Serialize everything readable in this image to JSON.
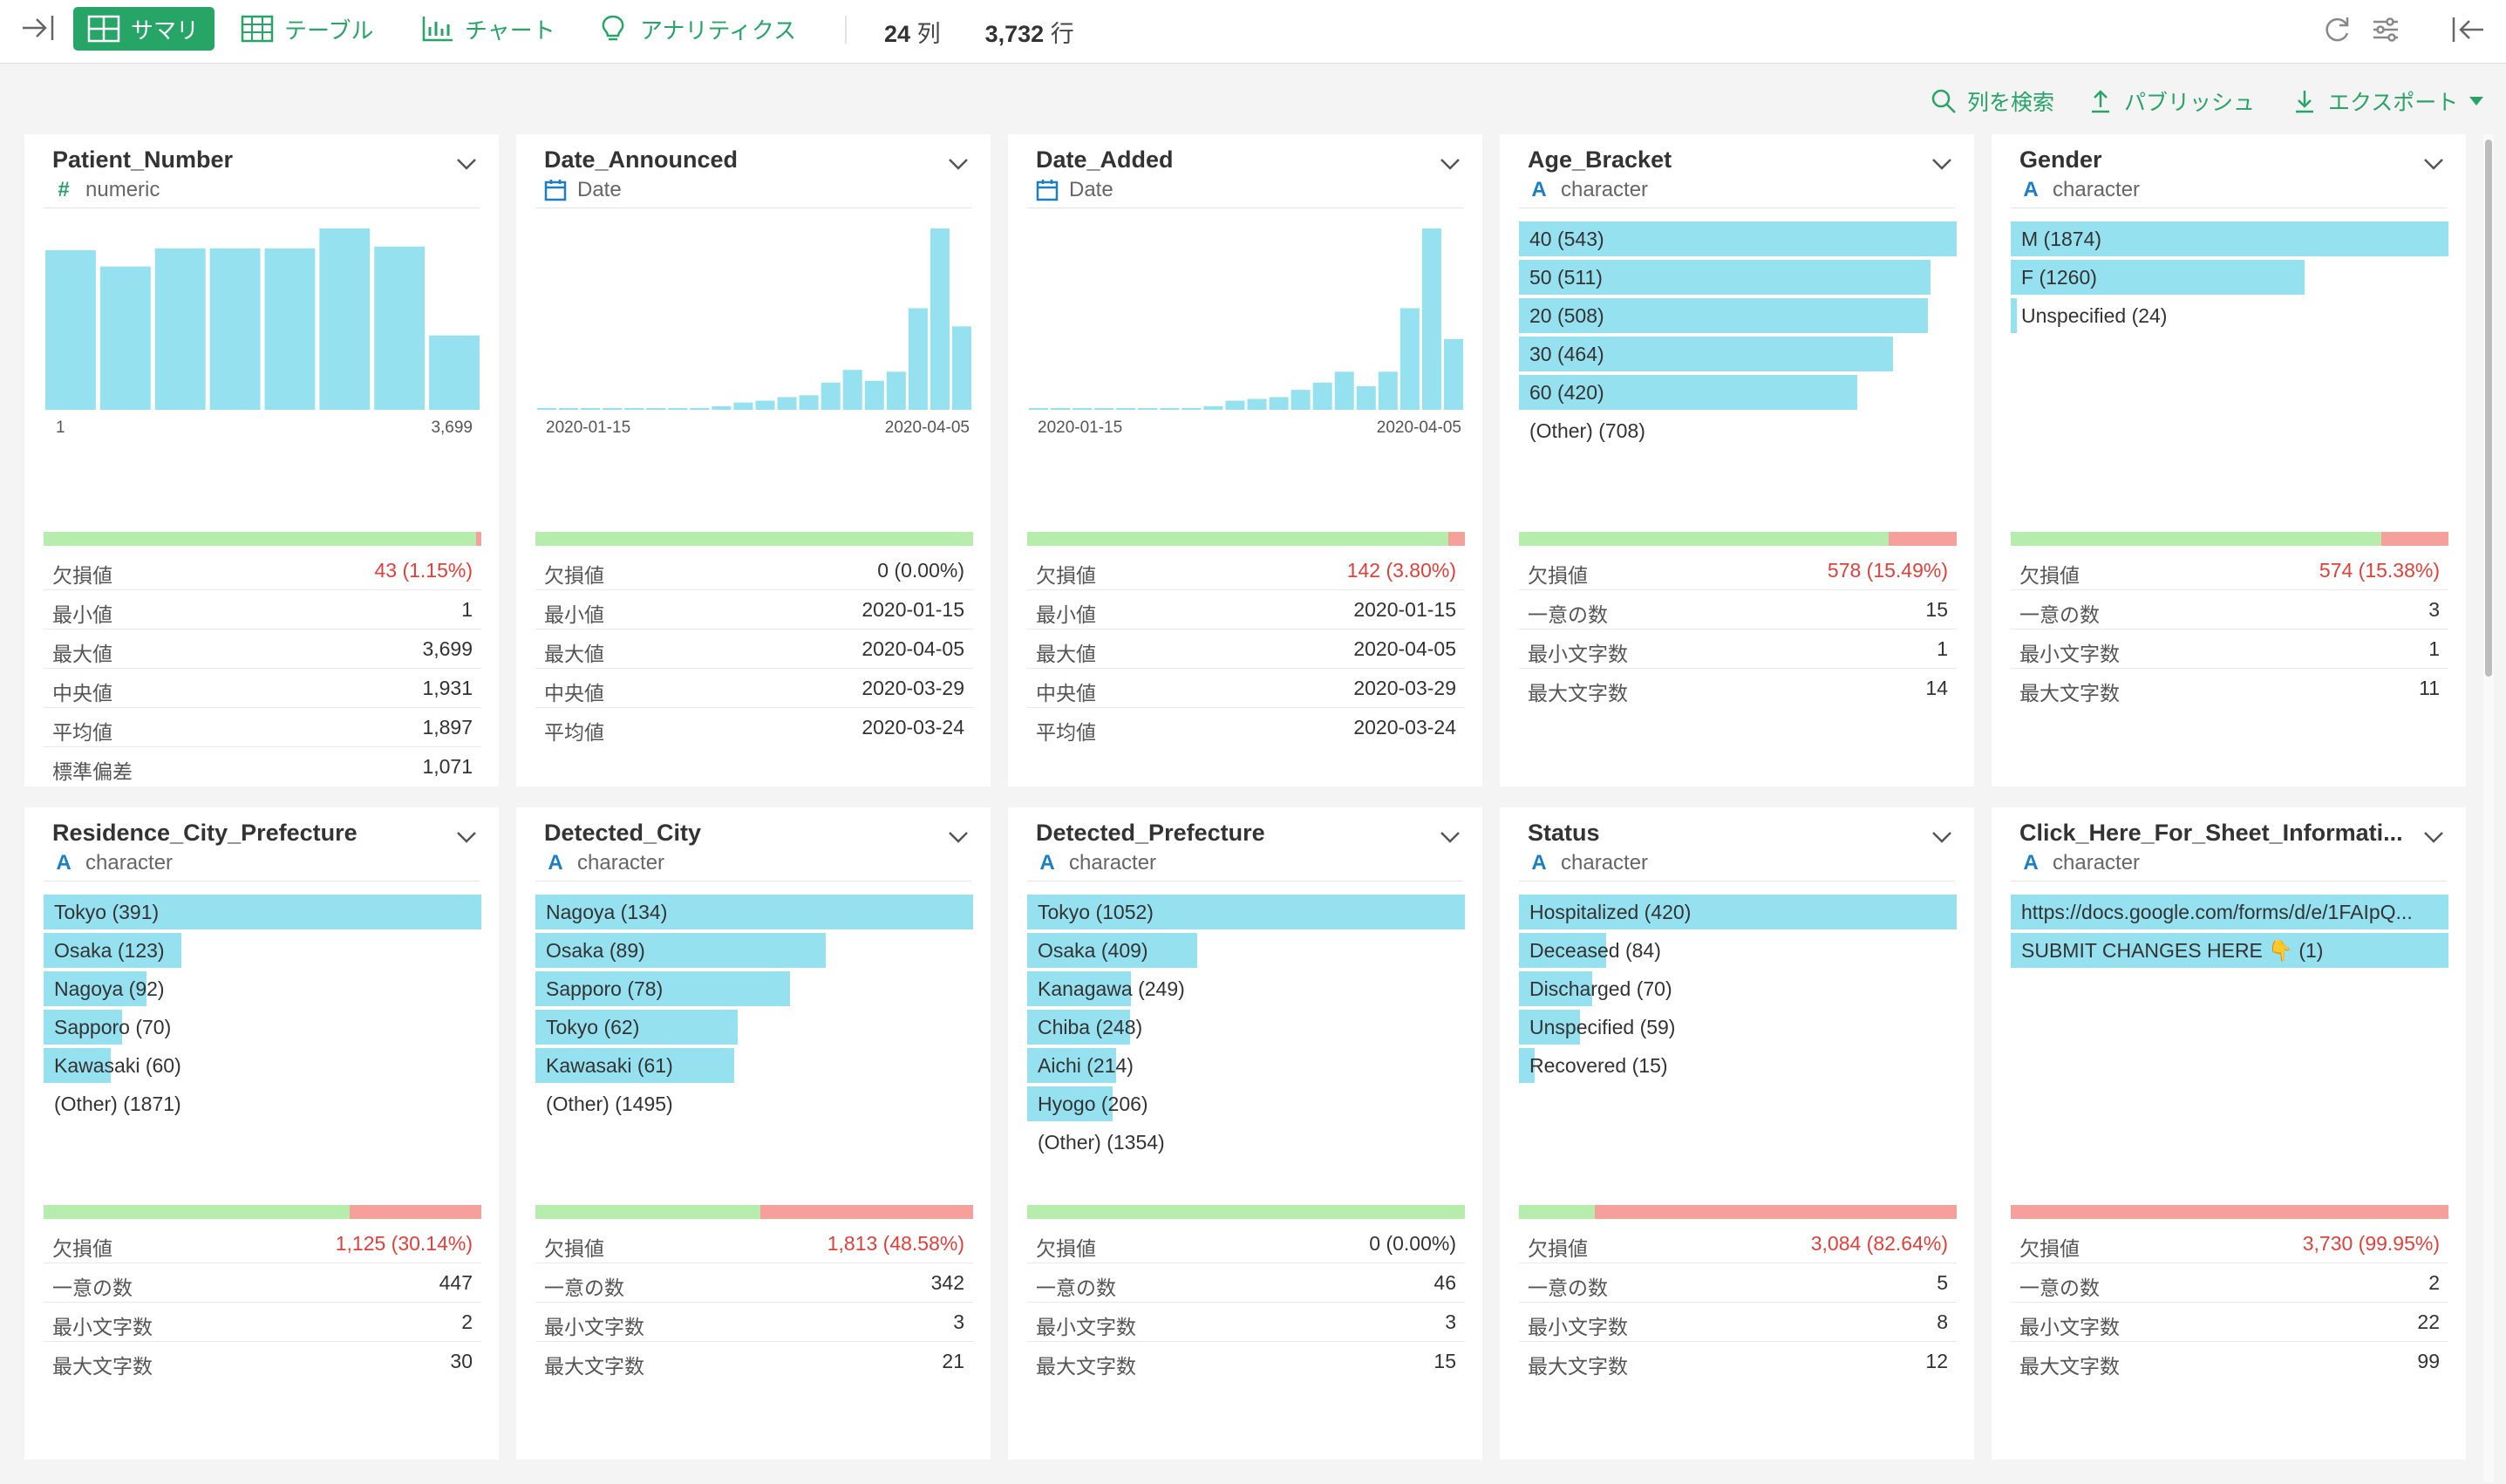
{
  "toolbar": {
    "tabs": [
      {
        "label": "サマリ",
        "icon": "summary-grid-icon"
      },
      {
        "label": "テーブル",
        "icon": "table-icon"
      },
      {
        "label": "チャート",
        "icon": "bar-chart-icon"
      },
      {
        "label": "アナリティクス",
        "icon": "lightbulb-icon"
      }
    ],
    "columns_count": "24",
    "columns_unit": "列",
    "rows_count": "3,732",
    "rows_unit": "行",
    "accent_color": "#27a567"
  },
  "actions": {
    "search_label": "列を検索",
    "publish_label": "パブリッシュ",
    "export_label": "エクスポート"
  },
  "colors": {
    "bar": "#95e1f0",
    "valid": "#b6ecac",
    "missing": "#f5a09a",
    "missing_text": "#e0403a"
  },
  "cards": [
    {
      "name": "Patient_Number",
      "type": "numeric",
      "type_icon": "#",
      "kind": "hist",
      "hist": [
        0.88,
        0.79,
        0.89,
        0.89,
        0.89,
        1.0,
        0.9,
        0.41
      ],
      "hist_min": "1",
      "hist_max": "3,699",
      "missing_ratio": 0.0115,
      "stats": [
        {
          "k": "欠損値",
          "v": "43 (1.15%)",
          "red": true
        },
        {
          "k": "最小値",
          "v": "1"
        },
        {
          "k": "最大値",
          "v": "3,699"
        },
        {
          "k": "中央値",
          "v": "1,931"
        },
        {
          "k": "平均値",
          "v": "1,897"
        },
        {
          "k": "標準偏差",
          "v": "1,071"
        }
      ]
    },
    {
      "name": "Date_Announced",
      "type": "Date",
      "type_icon": "calendar",
      "kind": "hist",
      "hist": [
        0.005,
        0.005,
        0.005,
        0.005,
        0.005,
        0.005,
        0.005,
        0.01,
        0.02,
        0.04,
        0.05,
        0.07,
        0.08,
        0.15,
        0.22,
        0.16,
        0.21,
        0.56,
        1.0,
        0.46
      ],
      "hist_min": "2020-01-15",
      "hist_max": "2020-04-05",
      "missing_ratio": 0,
      "stats": [
        {
          "k": "欠損値",
          "v": "0 (0.00%)"
        },
        {
          "k": "最小値",
          "v": "2020-01-15"
        },
        {
          "k": "最大値",
          "v": "2020-04-05"
        },
        {
          "k": "中央値",
          "v": "2020-03-29"
        },
        {
          "k": "平均値",
          "v": "2020-03-24"
        }
      ]
    },
    {
      "name": "Date_Added",
      "type": "Date",
      "type_icon": "calendar",
      "kind": "hist",
      "hist": [
        0.005,
        0.005,
        0.005,
        0.005,
        0.005,
        0.005,
        0.005,
        0.01,
        0.02,
        0.05,
        0.06,
        0.07,
        0.11,
        0.15,
        0.21,
        0.13,
        0.21,
        0.56,
        1.0,
        0.39
      ],
      "hist_min": "2020-01-15",
      "hist_max": "2020-04-05",
      "missing_ratio": 0.038,
      "stats": [
        {
          "k": "欠損値",
          "v": "142 (3.80%)",
          "red": true
        },
        {
          "k": "最小値",
          "v": "2020-01-15"
        },
        {
          "k": "最大値",
          "v": "2020-04-05"
        },
        {
          "k": "中央値",
          "v": "2020-03-29"
        },
        {
          "k": "平均値",
          "v": "2020-03-24"
        }
      ]
    },
    {
      "name": "Age_Bracket",
      "type": "character",
      "type_icon": "A",
      "kind": "cat",
      "cats": [
        {
          "label": "40 (543)",
          "ratio": 1.0
        },
        {
          "label": "50 (511)",
          "ratio": 0.94
        },
        {
          "label": "20 (508)",
          "ratio": 0.935
        },
        {
          "label": "30 (464)",
          "ratio": 0.855
        },
        {
          "label": "60 (420)",
          "ratio": 0.773
        },
        {
          "label": "(Other) (708)",
          "ratio": 0
        }
      ],
      "missing_ratio": 0.1549,
      "stats": [
        {
          "k": "欠損値",
          "v": "578 (15.49%)",
          "red": true
        },
        {
          "k": "一意の数",
          "v": "15"
        },
        {
          "k": "最小文字数",
          "v": "1"
        },
        {
          "k": "最大文字数",
          "v": "14"
        }
      ]
    },
    {
      "name": "Gender",
      "type": "character",
      "type_icon": "A",
      "kind": "cat",
      "cats": [
        {
          "label": "M (1874)",
          "ratio": 1.0
        },
        {
          "label": "F (1260)",
          "ratio": 0.672
        },
        {
          "label": "Unspecified (24)",
          "ratio": 0.013
        }
      ],
      "missing_ratio": 0.1538,
      "stats": [
        {
          "k": "欠損値",
          "v": "574 (15.38%)",
          "red": true
        },
        {
          "k": "一意の数",
          "v": "3"
        },
        {
          "k": "最小文字数",
          "v": "1"
        },
        {
          "k": "最大文字数",
          "v": "11"
        }
      ]
    },
    {
      "name": "Residence_City_Prefecture",
      "type": "character",
      "type_icon": "A",
      "kind": "cat",
      "cats": [
        {
          "label": "Tokyo (391)",
          "ratio": 1.0
        },
        {
          "label": "Osaka (123)",
          "ratio": 0.315
        },
        {
          "label": "Nagoya (92)",
          "ratio": 0.235
        },
        {
          "label": "Sapporo (70)",
          "ratio": 0.179
        },
        {
          "label": "Kawasaki (60)",
          "ratio": 0.153
        },
        {
          "label": "(Other) (1871)",
          "ratio": 0
        }
      ],
      "missing_ratio": 0.3014,
      "stats": [
        {
          "k": "欠損値",
          "v": "1,125 (30.14%)",
          "red": true
        },
        {
          "k": "一意の数",
          "v": "447"
        },
        {
          "k": "最小文字数",
          "v": "2"
        },
        {
          "k": "最大文字数",
          "v": "30"
        }
      ]
    },
    {
      "name": "Detected_City",
      "type": "character",
      "type_icon": "A",
      "kind": "cat",
      "cats": [
        {
          "label": "Nagoya (134)",
          "ratio": 1.0
        },
        {
          "label": "Osaka (89)",
          "ratio": 0.664
        },
        {
          "label": "Sapporo (78)",
          "ratio": 0.582
        },
        {
          "label": "Tokyo (62)",
          "ratio": 0.463
        },
        {
          "label": "Kawasaki (61)",
          "ratio": 0.455
        },
        {
          "label": "(Other) (1495)",
          "ratio": 0
        }
      ],
      "missing_ratio": 0.4858,
      "stats": [
        {
          "k": "欠損値",
          "v": "1,813 (48.58%)",
          "red": true
        },
        {
          "k": "一意の数",
          "v": "342"
        },
        {
          "k": "最小文字数",
          "v": "3"
        },
        {
          "k": "最大文字数",
          "v": "21"
        }
      ]
    },
    {
      "name": "Detected_Prefecture",
      "type": "character",
      "type_icon": "A",
      "kind": "cat",
      "cats": [
        {
          "label": "Tokyo (1052)",
          "ratio": 1.0
        },
        {
          "label": "Osaka (409)",
          "ratio": 0.389
        },
        {
          "label": "Kanagawa (249)",
          "ratio": 0.237
        },
        {
          "label": "Chiba (248)",
          "ratio": 0.236
        },
        {
          "label": "Aichi (214)",
          "ratio": 0.203
        },
        {
          "label": "Hyogo (206)",
          "ratio": 0.196
        },
        {
          "label": "(Other) (1354)",
          "ratio": 0
        }
      ],
      "missing_ratio": 0,
      "stats": [
        {
          "k": "欠損値",
          "v": "0 (0.00%)"
        },
        {
          "k": "一意の数",
          "v": "46"
        },
        {
          "k": "最小文字数",
          "v": "3"
        },
        {
          "k": "最大文字数",
          "v": "15"
        }
      ]
    },
    {
      "name": "Status",
      "type": "character",
      "type_icon": "A",
      "kind": "cat",
      "cats": [
        {
          "label": "Hospitalized (420)",
          "ratio": 1.0
        },
        {
          "label": "Deceased (84)",
          "ratio": 0.2
        },
        {
          "label": "Discharged (70)",
          "ratio": 0.167
        },
        {
          "label": "Unspecified (59)",
          "ratio": 0.14
        },
        {
          "label": "Recovered (15)",
          "ratio": 0.036
        }
      ],
      "missing_ratio": 0.8264,
      "stats": [
        {
          "k": "欠損値",
          "v": "3,084 (82.64%)",
          "red": true
        },
        {
          "k": "一意の数",
          "v": "5"
        },
        {
          "k": "最小文字数",
          "v": "8"
        },
        {
          "k": "最大文字数",
          "v": "12"
        }
      ]
    },
    {
      "name": "Click_Here_For_Sheet_Informati...",
      "type": "character",
      "type_icon": "A",
      "kind": "cat",
      "cats": [
        {
          "label": "https://docs.google.com/forms/d/e/1FAIpQ...",
          "ratio": 1.0
        },
        {
          "label": "SUBMIT CHANGES HERE 👇 (1)",
          "ratio": 1.0
        }
      ],
      "missing_ratio": 0.9995,
      "stats": [
        {
          "k": "欠損値",
          "v": "3,730 (99.95%)",
          "red": true
        },
        {
          "k": "一意の数",
          "v": "2"
        },
        {
          "k": "最小文字数",
          "v": "22"
        },
        {
          "k": "最大文字数",
          "v": "99"
        }
      ]
    }
  ]
}
